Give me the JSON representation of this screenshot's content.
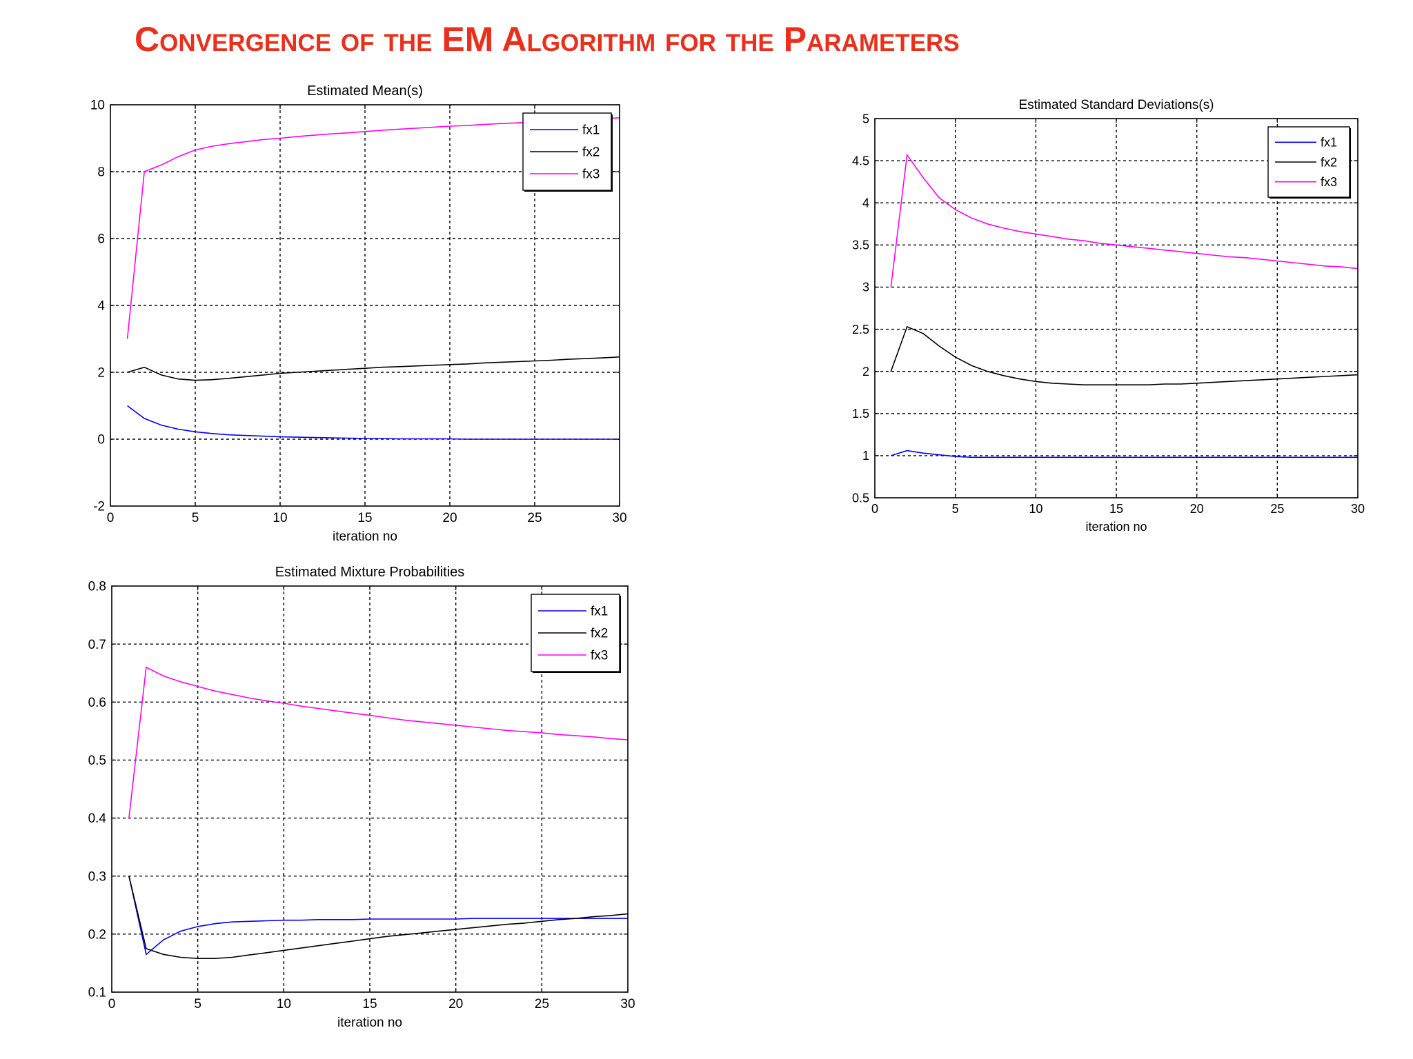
{
  "slide": {
    "title": "Convergence of the EM Algorithm for the Parameters"
  },
  "chart_data": [
    {
      "type": "line",
      "title": "Estimated Mean(s)",
      "xlabel": "iteration no",
      "ylabel": "",
      "xlim": [
        0,
        30
      ],
      "ylim": [
        -2,
        10
      ],
      "xticks": [
        0,
        5,
        10,
        15,
        20,
        25,
        30
      ],
      "yticks": [
        -2,
        0,
        2,
        4,
        6,
        8,
        10
      ],
      "grid": true,
      "legend": "top-right",
      "x": [
        1,
        2,
        3,
        4,
        5,
        6,
        7,
        8,
        9,
        10,
        11,
        12,
        13,
        14,
        15,
        16,
        17,
        18,
        19,
        20,
        21,
        22,
        23,
        24,
        25,
        26,
        27,
        28,
        29,
        30
      ],
      "series": [
        {
          "name": "fx1",
          "color": "#0000ff",
          "values": [
            1.0,
            0.62,
            0.42,
            0.3,
            0.22,
            0.17,
            0.13,
            0.11,
            0.09,
            0.07,
            0.06,
            0.05,
            0.04,
            0.03,
            0.02,
            0.02,
            0.01,
            0.01,
            0.01,
            0.01,
            0.0,
            0.0,
            0.0,
            0.0,
            0.0,
            0.0,
            0.0,
            0.0,
            0.0,
            0.0
          ]
        },
        {
          "name": "fx2",
          "color": "#000000",
          "values": [
            2.0,
            2.15,
            1.92,
            1.8,
            1.76,
            1.78,
            1.82,
            1.87,
            1.92,
            1.97,
            2.0,
            2.03,
            2.06,
            2.09,
            2.12,
            2.15,
            2.17,
            2.19,
            2.21,
            2.23,
            2.25,
            2.28,
            2.3,
            2.32,
            2.34,
            2.36,
            2.39,
            2.41,
            2.43,
            2.46
          ]
        },
        {
          "name": "fx3",
          "color": "#ff00ff",
          "values": [
            3.0,
            8.0,
            8.2,
            8.45,
            8.65,
            8.76,
            8.84,
            8.9,
            8.96,
            9.0,
            9.05,
            9.09,
            9.13,
            9.16,
            9.2,
            9.24,
            9.27,
            9.3,
            9.33,
            9.36,
            9.38,
            9.41,
            9.44,
            9.46,
            9.49,
            9.51,
            9.54,
            9.56,
            9.59,
            9.61
          ]
        }
      ]
    },
    {
      "type": "line",
      "title": "Estimated Standard Deviations(s)",
      "xlabel": "iteration no",
      "ylabel": "",
      "xlim": [
        0,
        30
      ],
      "ylim": [
        0.5,
        5
      ],
      "xticks": [
        0,
        5,
        10,
        15,
        20,
        25,
        30
      ],
      "yticks": [
        0.5,
        1,
        1.5,
        2,
        2.5,
        3,
        3.5,
        4,
        4.5,
        5
      ],
      "grid": true,
      "legend": "top-right",
      "x": [
        1,
        2,
        3,
        4,
        5,
        6,
        7,
        8,
        9,
        10,
        11,
        12,
        13,
        14,
        15,
        16,
        17,
        18,
        19,
        20,
        21,
        22,
        23,
        24,
        25,
        26,
        27,
        28,
        29,
        30
      ],
      "series": [
        {
          "name": "fx1",
          "color": "#0000ff",
          "values": [
            1.0,
            1.06,
            1.03,
            1.01,
            0.99,
            0.98,
            0.98,
            0.98,
            0.98,
            0.98,
            0.98,
            0.98,
            0.98,
            0.98,
            0.98,
            0.98,
            0.98,
            0.98,
            0.98,
            0.98,
            0.98,
            0.98,
            0.98,
            0.98,
            0.98,
            0.98,
            0.98,
            0.98,
            0.98,
            0.98
          ]
        },
        {
          "name": "fx2",
          "color": "#000000",
          "values": [
            2.0,
            2.53,
            2.45,
            2.3,
            2.17,
            2.07,
            2.0,
            1.95,
            1.91,
            1.88,
            1.86,
            1.85,
            1.84,
            1.84,
            1.84,
            1.84,
            1.84,
            1.85,
            1.85,
            1.86,
            1.87,
            1.88,
            1.89,
            1.9,
            1.91,
            1.92,
            1.93,
            1.94,
            1.95,
            1.96
          ]
        },
        {
          "name": "fx3",
          "color": "#ff00ff",
          "values": [
            3.0,
            4.57,
            4.3,
            4.06,
            3.92,
            3.82,
            3.75,
            3.7,
            3.66,
            3.63,
            3.6,
            3.57,
            3.55,
            3.52,
            3.5,
            3.48,
            3.46,
            3.44,
            3.42,
            3.4,
            3.38,
            3.36,
            3.35,
            3.33,
            3.31,
            3.29,
            3.27,
            3.25,
            3.24,
            3.22
          ]
        }
      ]
    },
    {
      "type": "line",
      "title": "Estimated Mixture Probabilities",
      "xlabel": "iteration no",
      "ylabel": "",
      "xlim": [
        0,
        30
      ],
      "ylim": [
        0.1,
        0.8
      ],
      "xticks": [
        0,
        5,
        10,
        15,
        20,
        25,
        30
      ],
      "yticks": [
        0.1,
        0.2,
        0.3,
        0.4,
        0.5,
        0.6,
        0.7,
        0.8
      ],
      "grid": true,
      "legend": "top-right",
      "x": [
        1,
        2,
        3,
        4,
        5,
        6,
        7,
        8,
        9,
        10,
        11,
        12,
        13,
        14,
        15,
        16,
        17,
        18,
        19,
        20,
        21,
        22,
        23,
        24,
        25,
        26,
        27,
        28,
        29,
        30
      ],
      "series": [
        {
          "name": "fx1",
          "color": "#0000ff",
          "values": [
            0.3,
            0.165,
            0.19,
            0.205,
            0.213,
            0.218,
            0.221,
            0.222,
            0.223,
            0.224,
            0.224,
            0.225,
            0.225,
            0.225,
            0.226,
            0.226,
            0.226,
            0.226,
            0.226,
            0.226,
            0.227,
            0.227,
            0.227,
            0.227,
            0.227,
            0.227,
            0.227,
            0.227,
            0.227,
            0.227
          ]
        },
        {
          "name": "fx2",
          "color": "#000000",
          "values": [
            0.3,
            0.175,
            0.165,
            0.16,
            0.158,
            0.158,
            0.16,
            0.164,
            0.168,
            0.172,
            0.176,
            0.18,
            0.184,
            0.188,
            0.192,
            0.196,
            0.199,
            0.202,
            0.205,
            0.208,
            0.211,
            0.214,
            0.217,
            0.219,
            0.222,
            0.225,
            0.227,
            0.23,
            0.232,
            0.235
          ]
        },
        {
          "name": "fx3",
          "color": "#ff00ff",
          "values": [
            0.4,
            0.66,
            0.645,
            0.635,
            0.627,
            0.619,
            0.613,
            0.607,
            0.602,
            0.598,
            0.593,
            0.589,
            0.585,
            0.581,
            0.577,
            0.573,
            0.569,
            0.566,
            0.563,
            0.56,
            0.557,
            0.554,
            0.551,
            0.549,
            0.547,
            0.544,
            0.542,
            0.54,
            0.537,
            0.535
          ]
        }
      ]
    }
  ]
}
